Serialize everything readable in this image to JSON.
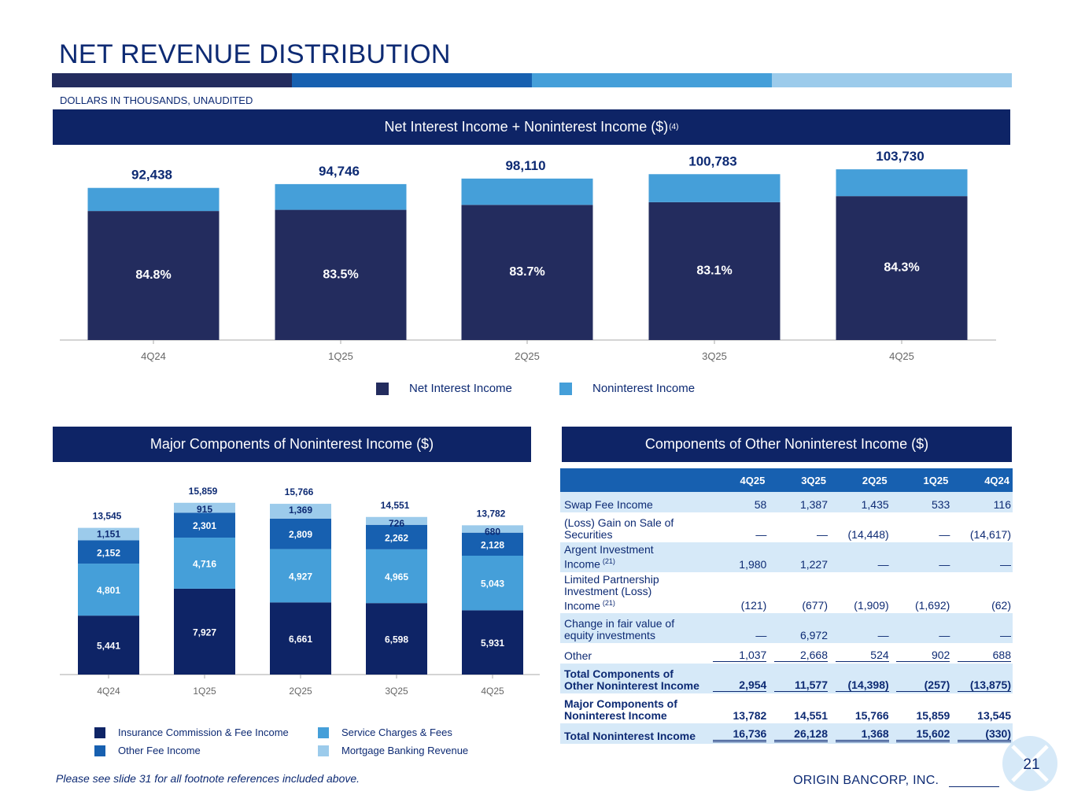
{
  "header": {
    "title": "NET REVENUE DISTRIBUTION",
    "subtitle": "DOLLARS IN THOUSANDS, UNAUDITED"
  },
  "colors": {
    "navy": "#0e2466",
    "bar_navy": "#232c5e",
    "medium_blue": "#1760b0",
    "light_blue": "#459fd9",
    "pale_blue": "#9ccbeb",
    "table_shade": "#d6e9f8",
    "stripe": [
      "#232c5e",
      "#1760b0",
      "#459fd9",
      "#9ccbeb"
    ]
  },
  "top_chart_banner": {
    "title": "Net Interest Income + Noninterest Income ($)",
    "superscript": "(4)"
  },
  "legend_top": {
    "net_interest": "Net Interest Income",
    "noninterest": "Noninterest Income"
  },
  "chart_data": [
    {
      "type": "bar",
      "stacked": true,
      "title": "Net Interest Income + Noninterest Income ($)(4)",
      "categories": [
        "4Q24",
        "1Q25",
        "2Q25",
        "3Q25",
        "4Q25"
      ],
      "totals": [
        "92,438",
        "94,746",
        "98,110",
        "100,783",
        "103,730"
      ],
      "total_values": [
        92438,
        94746,
        98110,
        100783,
        103730
      ],
      "series": [
        {
          "name": "Net Interest Income",
          "share_labels": [
            "84.8%",
            "83.5%",
            "83.7%",
            "83.1%",
            "84.3%"
          ],
          "share": [
            84.8,
            83.5,
            83.7,
            83.1,
            84.3
          ]
        },
        {
          "name": "Noninterest Income",
          "share": [
            15.2,
            16.5,
            16.3,
            16.9,
            15.7
          ]
        }
      ],
      "xlabel": "",
      "ylabel": "",
      "legend": "bottom"
    },
    {
      "type": "bar",
      "stacked": true,
      "title": "Major Components of Noninterest Income ($)",
      "categories": [
        "4Q24",
        "1Q25",
        "2Q25",
        "3Q25",
        "4Q25"
      ],
      "totals": [
        "13,545",
        "15,859",
        "15,766",
        "14,551",
        "13,782"
      ],
      "series": [
        {
          "name": "Insurance Commission & Fee Income",
          "values": [
            5441,
            7927,
            6661,
            6598,
            5931
          ],
          "labels": [
            "5,441",
            "7,927",
            "6,661",
            "6,598",
            "5,931"
          ]
        },
        {
          "name": "Service Charges & Fees",
          "values": [
            4801,
            4716,
            4927,
            4965,
            5043
          ],
          "labels": [
            "4,801",
            "4,716",
            "4,927",
            "4,965",
            "5,043"
          ]
        },
        {
          "name": "Other Fee Income",
          "values": [
            2152,
            2301,
            2809,
            2262,
            2128
          ],
          "labels": [
            "2,152",
            "2,301",
            "2,809",
            "2,262",
            "2,128"
          ]
        },
        {
          "name": "Mortgage Banking Revenue",
          "values": [
            1151,
            915,
            1369,
            726,
            680
          ],
          "labels": [
            "1,151",
            "915",
            "1,369",
            "726",
            "680"
          ]
        }
      ],
      "xlabel": "",
      "ylabel": "",
      "legend": "bottom"
    }
  ],
  "major_banner": {
    "title": "Major Components of Noninterest Income ($)"
  },
  "legend_major": {
    "insurance": "Insurance Commission & Fee Income",
    "service": "Service Charges & Fees",
    "other_fee": "Other Fee Income",
    "mortgage": "Mortgage Banking Revenue"
  },
  "other_banner": {
    "title": "Components of Other Noninterest Income ($)"
  },
  "other_table": {
    "columns": [
      "4Q25",
      "3Q25",
      "2Q25",
      "1Q25",
      "4Q24"
    ],
    "rows": [
      {
        "label": "Swap Fee Income",
        "note": "",
        "values": [
          "58",
          "1,387",
          "1,435",
          "533",
          "116"
        ]
      },
      {
        "label": "(Loss) Gain on Sale of Securities",
        "note": "",
        "values": [
          "—",
          "—",
          "(14,448)",
          "—",
          "(14,617)"
        ]
      },
      {
        "label": "Argent Investment Income",
        "note": "(21)",
        "values": [
          "1,980",
          "1,227",
          "—",
          "—",
          "—"
        ]
      },
      {
        "label": "Limited Partnership Investment (Loss) Income",
        "note": "(21)",
        "values": [
          "(121)",
          "(677)",
          "(1,909)",
          "(1,692)",
          "(62)"
        ]
      },
      {
        "label": "Change in fair value of equity investments",
        "note": "",
        "values": [
          "—",
          "6,972",
          "—",
          "—",
          "—"
        ]
      },
      {
        "label": "Other",
        "note": "",
        "values": [
          "1,037",
          "2,668",
          "524",
          "902",
          "688"
        ]
      },
      {
        "label": "Total Components of Other Noninterest Income",
        "note": "",
        "values": [
          "2,954",
          "11,577",
          "(14,398)",
          "(257)",
          "(13,875)"
        ]
      },
      {
        "label": "Major Components of Noninterest Income",
        "note": "",
        "values": [
          "13,782",
          "14,551",
          "15,766",
          "15,859",
          "13,545"
        ]
      },
      {
        "label": "Total Noninterest Income",
        "note": "",
        "values": [
          "16,736",
          "26,128",
          "1,368",
          "15,602",
          "(330)"
        ]
      }
    ]
  },
  "footer": {
    "footnote": "Please see slide 31 for all footnote references included above.",
    "company": "ORIGIN BANCORP, INC.",
    "page": "21"
  }
}
